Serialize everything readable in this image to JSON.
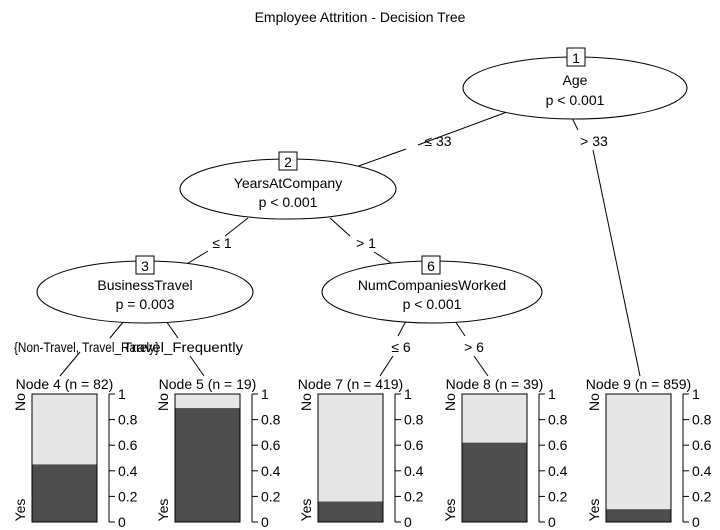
{
  "title": "Employee Attrition - Decision Tree",
  "inner_nodes": [
    {
      "id": "1",
      "variable": "Age",
      "p": "p < 0.001"
    },
    {
      "id": "2",
      "variable": "YearsAtCompany",
      "p": "p < 0.001"
    },
    {
      "id": "3",
      "variable": "BusinessTravel",
      "p": "p = 0.003"
    },
    {
      "id": "6",
      "variable": "NumCompaniesWorked",
      "p": "p < 0.001"
    }
  ],
  "edge_labels": {
    "n1_left": "≤ 33",
    "n1_right": "> 33",
    "n2_left": "≤ 1",
    "n2_right": "> 1",
    "n3_left": "{Non-Travel, Travel_Rarely}",
    "n3_right": "Travel_Frequently",
    "n6_left": "≤ 6",
    "n6_right": "> 6"
  },
  "axis": {
    "top_label": "No",
    "bottom_label": "Yes",
    "ticks": [
      "1",
      "0.8",
      "0.6",
      "0.4",
      "0.2",
      "0"
    ]
  },
  "colors": {
    "no": "#e6e6e6",
    "yes": "#4d4d4d"
  },
  "chart_data": {
    "type": "bar",
    "stacked": true,
    "categories": [
      "Node 4 (n = 82)",
      "Node 5 (n = 19)",
      "Node 7 (n = 419)",
      "Node 8 (n = 39)",
      "Node 9 (n = 859)"
    ],
    "series": [
      {
        "name": "Yes",
        "values": [
          0.45,
          0.89,
          0.16,
          0.62,
          0.1
        ]
      },
      {
        "name": "No",
        "values": [
          0.55,
          0.11,
          0.84,
          0.38,
          0.9
        ]
      }
    ],
    "ylim": [
      0,
      1
    ]
  }
}
